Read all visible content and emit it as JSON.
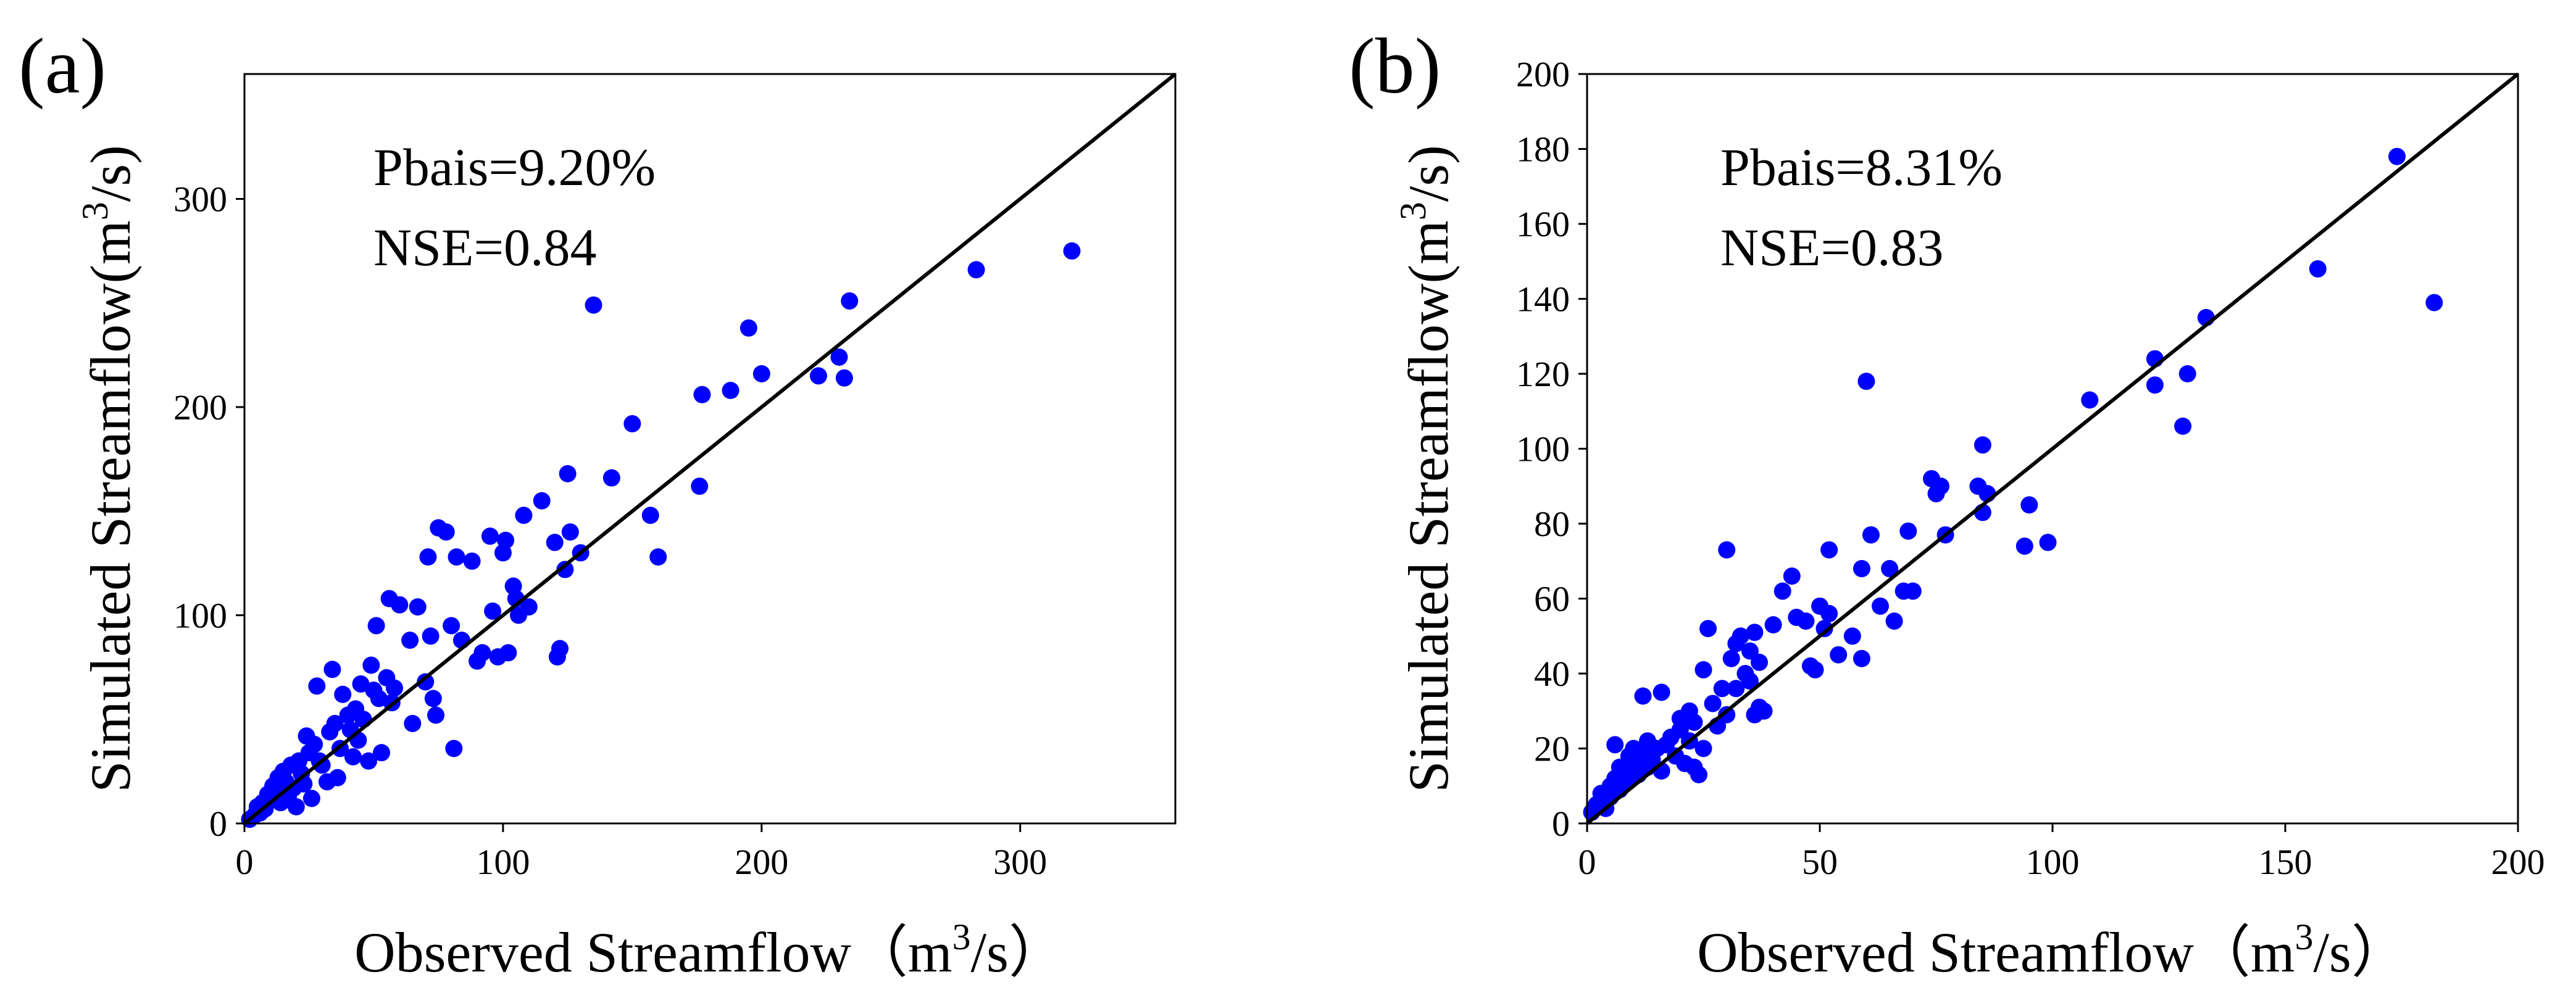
{
  "colors": {
    "points": "#0000ff",
    "axis": "#000000",
    "line": "#000000"
  },
  "chart_data": [
    {
      "type": "scatter",
      "panel_label": "(a)",
      "xlabel_main": "Observed Streamflow",
      "xlabel_unit_open": "（m",
      "xlabel_unit_sup": "3",
      "xlabel_unit_close": "/s）",
      "ylabel_main": "Simulated Streamflow(m",
      "ylabel_sup": "3",
      "ylabel_close": "/s)",
      "xlim": [
        0,
        360
      ],
      "ylim": [
        0,
        360
      ],
      "xticks": [
        0,
        100,
        200,
        300
      ],
      "yticks": [
        0,
        100,
        200,
        300
      ],
      "xtick_labels": [
        "0",
        "100",
        "200",
        "300"
      ],
      "ytick_labels": [
        "0",
        "100",
        "200",
        "300"
      ],
      "reference_line": [
        0,
        360
      ],
      "annotations": [
        "Pbais=9.20%",
        "NSE=0.84"
      ],
      "points": [
        [
          2,
          2
        ],
        [
          4,
          4
        ],
        [
          5,
          8
        ],
        [
          6,
          5
        ],
        [
          7,
          10
        ],
        [
          8,
          7
        ],
        [
          9,
          14
        ],
        [
          10,
          12
        ],
        [
          11,
          18
        ],
        [
          12,
          15
        ],
        [
          13,
          22
        ],
        [
          14,
          10
        ],
        [
          15,
          25
        ],
        [
          16,
          20
        ],
        [
          17,
          13
        ],
        [
          18,
          28
        ],
        [
          19,
          17
        ],
        [
          20,
          8
        ],
        [
          21,
          30
        ],
        [
          22,
          24
        ],
        [
          23,
          19
        ],
        [
          24,
          42
        ],
        [
          25,
          34
        ],
        [
          26,
          12
        ],
        [
          27,
          38
        ],
        [
          28,
          66
        ],
        [
          29,
          30
        ],
        [
          30,
          28
        ],
        [
          32,
          20
        ],
        [
          33,
          44
        ],
        [
          34,
          74
        ],
        [
          35,
          48
        ],
        [
          36,
          22
        ],
        [
          37,
          36
        ],
        [
          38,
          62
        ],
        [
          40,
          52
        ],
        [
          41,
          45
        ],
        [
          42,
          32
        ],
        [
          43,
          55
        ],
        [
          44,
          40
        ],
        [
          45,
          67
        ],
        [
          46,
          50
        ],
        [
          48,
          30
        ],
        [
          49,
          76
        ],
        [
          50,
          64
        ],
        [
          51,
          95
        ],
        [
          52,
          60
        ],
        [
          53,
          34
        ],
        [
          55,
          70
        ],
        [
          56,
          108
        ],
        [
          57,
          58
        ],
        [
          58,
          65
        ],
        [
          60,
          105
        ],
        [
          64,
          88
        ],
        [
          65,
          48
        ],
        [
          67,
          104
        ],
        [
          70,
          68
        ],
        [
          71,
          128
        ],
        [
          72,
          90
        ],
        [
          73,
          60
        ],
        [
          74,
          52
        ],
        [
          75,
          142
        ],
        [
          78,
          140
        ],
        [
          80,
          95
        ],
        [
          81,
          36
        ],
        [
          82,
          128
        ],
        [
          84,
          88
        ],
        [
          88,
          126
        ],
        [
          90,
          78
        ],
        [
          92,
          82
        ],
        [
          95,
          138
        ],
        [
          96,
          102
        ],
        [
          98,
          80
        ],
        [
          100,
          130
        ],
        [
          101,
          136
        ],
        [
          102,
          82
        ],
        [
          104,
          114
        ],
        [
          105,
          108
        ],
        [
          106,
          100
        ],
        [
          108,
          148
        ],
        [
          110,
          104
        ],
        [
          115,
          155
        ],
        [
          120,
          135
        ],
        [
          121,
          80
        ],
        [
          122,
          84
        ],
        [
          124,
          122
        ],
        [
          125,
          168
        ],
        [
          126,
          140
        ],
        [
          130,
          130
        ],
        [
          135,
          249
        ],
        [
          142,
          166
        ],
        [
          150,
          192
        ],
        [
          157,
          148
        ],
        [
          160,
          128
        ],
        [
          176,
          162
        ],
        [
          177,
          206
        ],
        [
          188,
          208
        ],
        [
          195,
          238
        ],
        [
          200,
          216
        ],
        [
          222,
          215
        ],
        [
          230,
          224
        ],
        [
          232,
          214
        ],
        [
          234,
          251
        ],
        [
          283,
          266
        ],
        [
          320,
          275
        ]
      ]
    },
    {
      "type": "scatter",
      "panel_label": "(b)",
      "xlabel_main": "Observed Streamflow",
      "xlabel_unit_open": "（m",
      "xlabel_unit_sup": "3",
      "xlabel_unit_close": "/s）",
      "ylabel_main": "Simulated Streamflow(m",
      "ylabel_sup": "3",
      "ylabel_close": "/s)",
      "xlim": [
        0,
        200
      ],
      "ylim": [
        0,
        200
      ],
      "xticks": [
        0,
        50,
        100,
        150,
        200
      ],
      "yticks": [
        0,
        20,
        40,
        60,
        80,
        100,
        120,
        140,
        160,
        180,
        200
      ],
      "xtick_labels": [
        "0",
        "50",
        "100",
        "150",
        "200"
      ],
      "ytick_labels": [
        "0",
        "20",
        "40",
        "60",
        "80",
        "100",
        "120",
        "140",
        "160",
        "180",
        "200"
      ],
      "reference_line": [
        0,
        200
      ],
      "annotations": [
        "Pbais=8.31%",
        "NSE=0.83"
      ],
      "points": [
        [
          1,
          3
        ],
        [
          2,
          5
        ],
        [
          3,
          6
        ],
        [
          3,
          8
        ],
        [
          4,
          4
        ],
        [
          5,
          10
        ],
        [
          5,
          7
        ],
        [
          6,
          12
        ],
        [
          6,
          21
        ],
        [
          7,
          9
        ],
        [
          7,
          15
        ],
        [
          8,
          14
        ],
        [
          8,
          11
        ],
        [
          9,
          18
        ],
        [
          9,
          12
        ],
        [
          10,
          20
        ],
        [
          10,
          16
        ],
        [
          11,
          13
        ],
        [
          12,
          19
        ],
        [
          12,
          34
        ],
        [
          13,
          22
        ],
        [
          13,
          15
        ],
        [
          14,
          17
        ],
        [
          15,
          20
        ],
        [
          16,
          35
        ],
        [
          16,
          14
        ],
        [
          17,
          21
        ],
        [
          18,
          23
        ],
        [
          19,
          18
        ],
        [
          20,
          25
        ],
        [
          20,
          28
        ],
        [
          21,
          16
        ],
        [
          22,
          30
        ],
        [
          22,
          22
        ],
        [
          23,
          27
        ],
        [
          23,
          15
        ],
        [
          24,
          13
        ],
        [
          25,
          41
        ],
        [
          25,
          20
        ],
        [
          26,
          52
        ],
        [
          27,
          32
        ],
        [
          28,
          26
        ],
        [
          29,
          36
        ],
        [
          30,
          73
        ],
        [
          30,
          29
        ],
        [
          31,
          44
        ],
        [
          32,
          48
        ],
        [
          32,
          36
        ],
        [
          33,
          50
        ],
        [
          34,
          40
        ],
        [
          35,
          46
        ],
        [
          35,
          38
        ],
        [
          36,
          29
        ],
        [
          36,
          51
        ],
        [
          37,
          31
        ],
        [
          37,
          43
        ],
        [
          38,
          30
        ],
        [
          40,
          53
        ],
        [
          42,
          62
        ],
        [
          44,
          66
        ],
        [
          45,
          55
        ],
        [
          47,
          54
        ],
        [
          48,
          42
        ],
        [
          49,
          41
        ],
        [
          50,
          58
        ],
        [
          51,
          52
        ],
        [
          52,
          73
        ],
        [
          52,
          56
        ],
        [
          54,
          45
        ],
        [
          57,
          50
        ],
        [
          59,
          44
        ],
        [
          59,
          68
        ],
        [
          60,
          118
        ],
        [
          61,
          77
        ],
        [
          63,
          58
        ],
        [
          65,
          68
        ],
        [
          66,
          54
        ],
        [
          68,
          62
        ],
        [
          69,
          78
        ],
        [
          70,
          62
        ],
        [
          74,
          92
        ],
        [
          75,
          88
        ],
        [
          76,
          90
        ],
        [
          77,
          77
        ],
        [
          84,
          90
        ],
        [
          85,
          83
        ],
        [
          85,
          101
        ],
        [
          86,
          88
        ],
        [
          94,
          74
        ],
        [
          95,
          85
        ],
        [
          99,
          75
        ],
        [
          108,
          113
        ],
        [
          122,
          124
        ],
        [
          122,
          117
        ],
        [
          128,
          106
        ],
        [
          129,
          120
        ],
        [
          133,
          135
        ],
        [
          157,
          148
        ],
        [
          174,
          178
        ],
        [
          182,
          139
        ]
      ]
    }
  ]
}
